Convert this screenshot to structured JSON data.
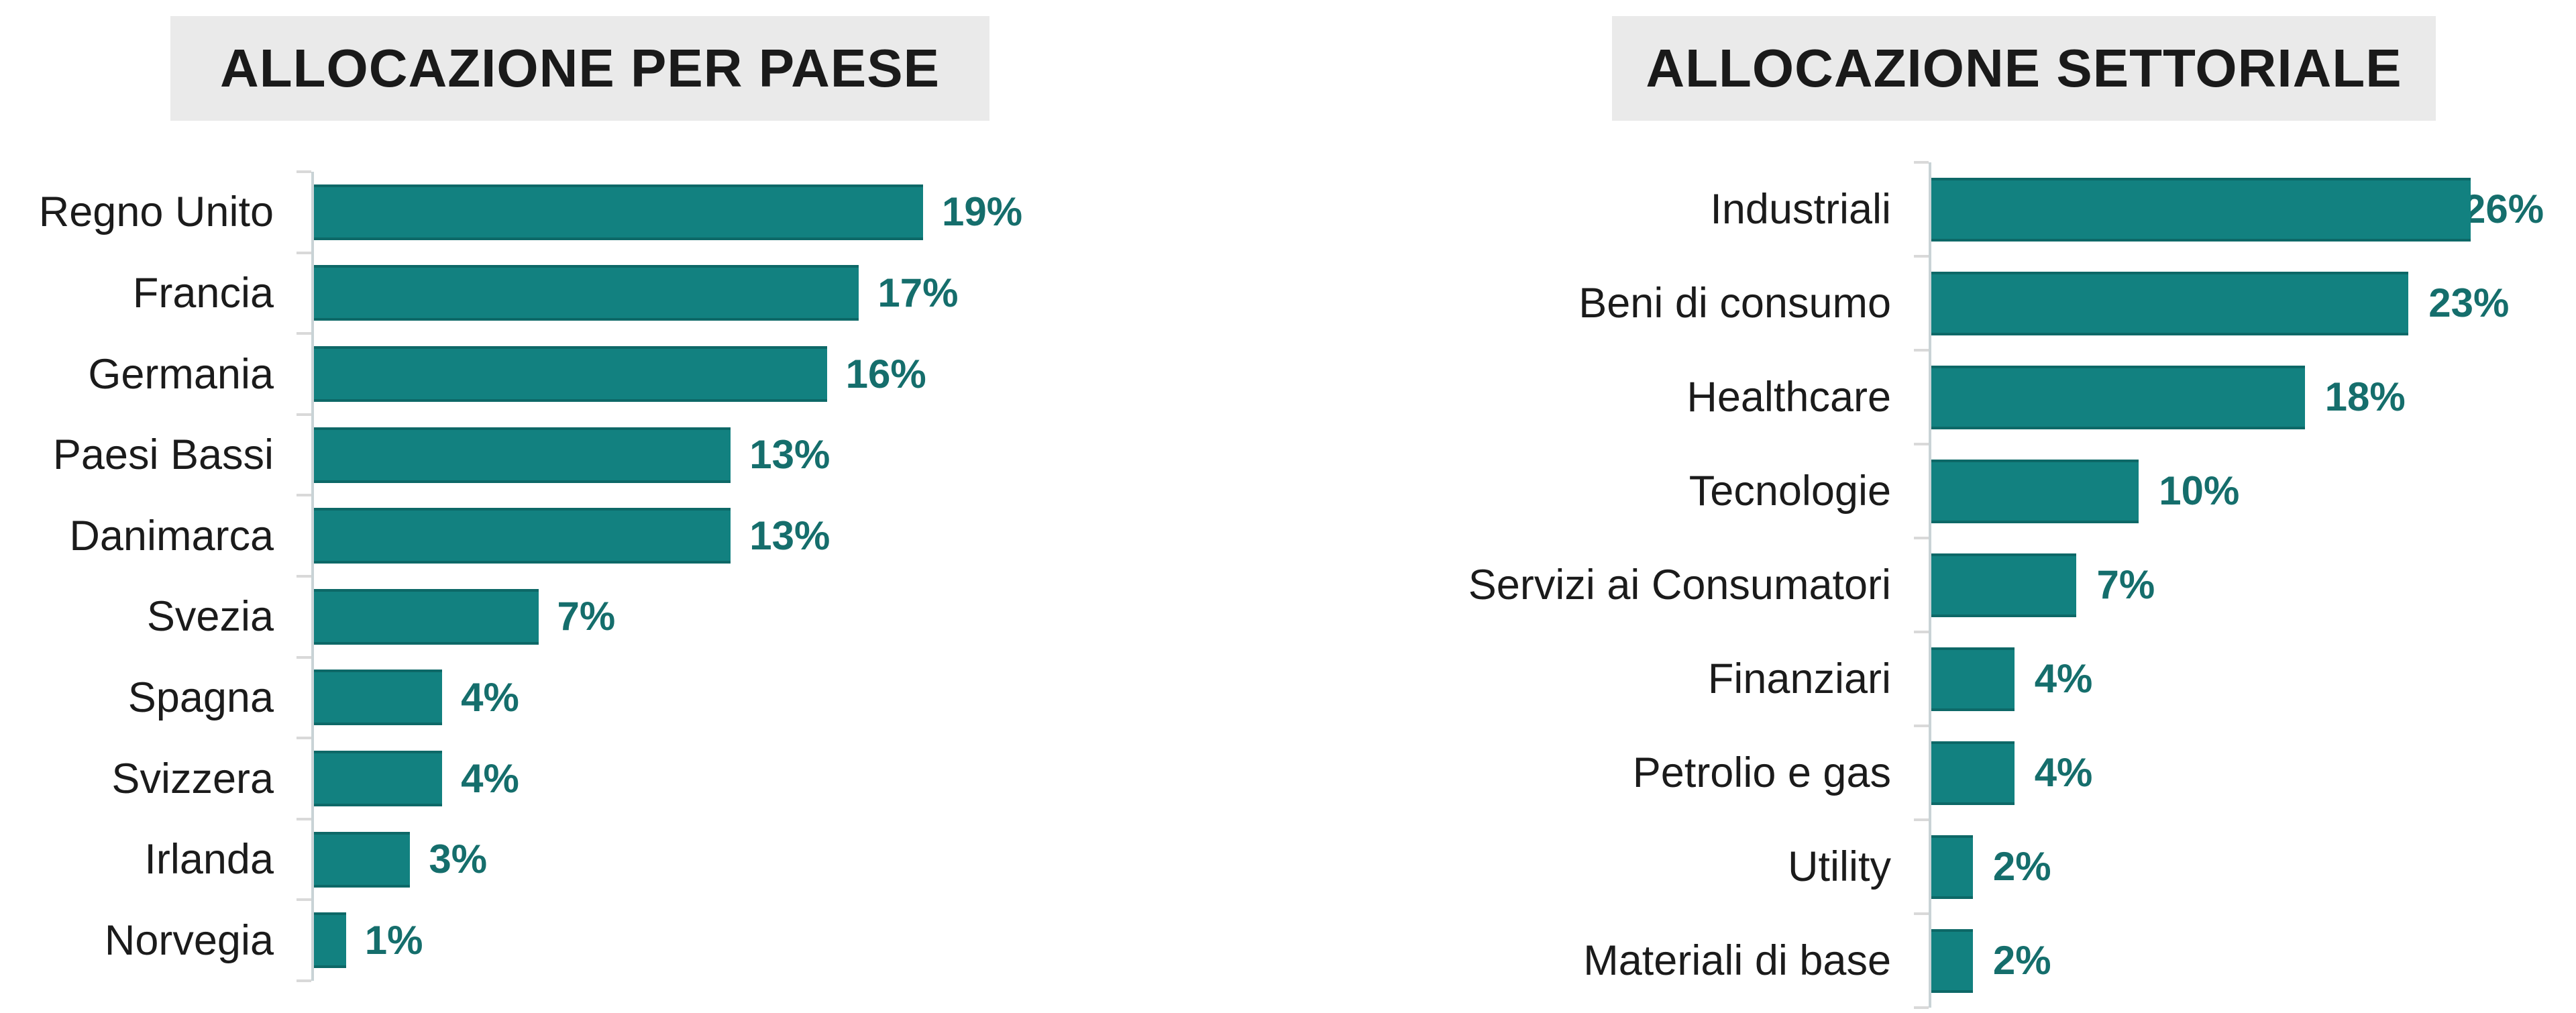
{
  "page": {
    "background": "#ffffff"
  },
  "colors": {
    "bar": "#128180",
    "bar_edge": "rgba(5, 58, 56, 0.35)",
    "value_label": "#156e6c",
    "category_text": "#1b1b1b",
    "title_text": "#1a1a1a",
    "title_bg": "#eaeaea",
    "axis": "#c9d3d6",
    "tick": "#d9d9d9"
  },
  "chart_data": [
    {
      "type": "bar",
      "orientation": "horizontal",
      "title": "ALLOCAZIONE PER PAESE",
      "categories": [
        "Regno Unito",
        "Francia",
        "Germania",
        "Paesi Bassi",
        "Danimarca",
        "Svezia",
        "Spagna",
        "Svizzera",
        "Irlanda",
        "Norvegia"
      ],
      "values": [
        19,
        17,
        16,
        13,
        13,
        7,
        4,
        4,
        3,
        1
      ],
      "value_labels": [
        "19%",
        "17%",
        "16%",
        "13%",
        "13%",
        "7%",
        "4%",
        "4%",
        "3%",
        "1%"
      ],
      "unit": "%",
      "xlim": [
        0,
        20
      ],
      "grid": false,
      "legend": "none",
      "value_label_position": "outside-end"
    },
    {
      "type": "bar",
      "orientation": "horizontal",
      "title": "ALLOCAZIONE SETTORIALE",
      "categories": [
        "Industriali",
        "Beni di consumo",
        "Healthcare",
        "Tecnologie",
        "Servizi ai Consumatori",
        "Finanziari",
        "Petrolio e gas",
        "Utility",
        "Materiali di base"
      ],
      "values": [
        26,
        23,
        18,
        10,
        7,
        4,
        4,
        2,
        2
      ],
      "value_labels": [
        "26%",
        "23%",
        "18%",
        "10%",
        "7%",
        "4%",
        "4%",
        "2%",
        "2%"
      ],
      "unit": "%",
      "xlim": [
        0,
        28
      ],
      "grid": false,
      "legend": "none",
      "value_label_position": "outside-end"
    }
  ]
}
